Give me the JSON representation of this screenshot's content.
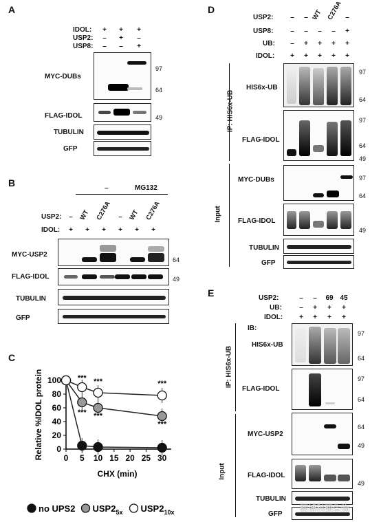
{
  "watermark": "硕博科研生物",
  "panelA": {
    "label": "A",
    "cond_labels": [
      "IDOL:",
      "USP2:",
      "USP8:"
    ],
    "cond_signs": [
      [
        "+",
        "+",
        "+"
      ],
      [
        "–",
        "+",
        "–"
      ],
      [
        "–",
        "–",
        "+"
      ]
    ],
    "rows": [
      "MYC-DUBs",
      "FLAG-IDOL",
      "TUBULIN",
      "GFP"
    ],
    "mw": [
      "97",
      "64",
      "49"
    ]
  },
  "panelB": {
    "label": "B",
    "group_blank": "–",
    "group_mg": "MG132",
    "usp2_label": "USP2:",
    "usp2_vals": [
      "–",
      "WT",
      "C276A",
      "–",
      "WT",
      "C276A"
    ],
    "idol_label": "IDOL:",
    "idol_vals": [
      "+",
      "+",
      "+",
      "+",
      "+",
      "+"
    ],
    "rows": [
      "MYC-USP2",
      "FLAG-IDOL",
      "TUBULIN",
      "GFP"
    ],
    "mw": [
      "64",
      "49"
    ]
  },
  "panelC": {
    "label": "C",
    "chart_data": {
      "type": "line",
      "xlabel": "CHX (min)",
      "ylabel": "Relative %IDOL protein",
      "x_ticks": [
        "0",
        "5",
        "10",
        "15",
        "20",
        "25",
        "30"
      ],
      "y_ticks": [
        "0",
        "20",
        "40",
        "60",
        "80",
        "100"
      ],
      "xlim": [
        0,
        32
      ],
      "ylim": [
        0,
        100
      ],
      "series": [
        {
          "name": "no UPS2",
          "marker": "black",
          "x": [
            0,
            5,
            10,
            30
          ],
          "y": [
            100,
            5,
            3,
            2
          ]
        },
        {
          "name": "USP2",
          "sub": "5x",
          "marker": "gray",
          "x": [
            0,
            5,
            10,
            30
          ],
          "y": [
            100,
            68,
            60,
            48
          ]
        },
        {
          "name": "USP2",
          "sub": "10x",
          "marker": "white",
          "x": [
            0,
            5,
            10,
            30
          ],
          "y": [
            100,
            90,
            82,
            78
          ]
        }
      ],
      "annotations": [
        {
          "text": "***",
          "x": 5,
          "y": 100
        },
        {
          "text": "***",
          "x": 10,
          "y": 95
        },
        {
          "text": "***",
          "x": 30,
          "y": 92
        },
        {
          "text": "***",
          "x": 5,
          "y": 50
        },
        {
          "text": "***",
          "x": 10,
          "y": 45
        },
        {
          "text": "***",
          "x": 30,
          "y": 33
        }
      ]
    }
  },
  "panelD": {
    "label": "D",
    "usp2_label": "USP2:",
    "usp2_vals": [
      "–",
      "–",
      "WT",
      "C276A",
      "–"
    ],
    "usp8_label": "USP8:",
    "usp8_vals": [
      "–",
      "–",
      "–",
      "–",
      "+"
    ],
    "ub_label": "UB:",
    "ub_vals": [
      "–",
      "+",
      "+",
      "+",
      "+"
    ],
    "idol_label": "IDOL:",
    "idol_vals": [
      "+",
      "+",
      "+",
      "+",
      "+"
    ],
    "side_ip": "IP: HIS6x-UB",
    "side_input": "Input",
    "rows": [
      "HIS6x-UB",
      "FLAG-IDOL",
      "MYC-DUBs",
      "FLAG-IDOL",
      "TUBULIN",
      "GFP"
    ],
    "mw": [
      "97",
      "64",
      "97",
      "64",
      "49",
      "97",
      "64",
      "49"
    ]
  },
  "panelE": {
    "label": "E",
    "usp2_label": "USP2:",
    "usp2_vals": [
      "–",
      "–",
      "69",
      "45"
    ],
    "ub_label": "UB:",
    "ub_vals": [
      "–",
      "+",
      "+",
      "+"
    ],
    "idol_label": "IDOL:",
    "idol_vals": [
      "+",
      "+",
      "+",
      "+"
    ],
    "ib_label": "IB:",
    "side_ip": "IP: HIS6x-UB",
    "side_input": "Input",
    "rows": [
      "HIS6x-UB",
      "FLAG-IDOL",
      "MYC-USP2",
      "FLAG-IDOL",
      "TUBULIN",
      "GFP"
    ],
    "mw": [
      "97",
      "64",
      "97",
      "64",
      "64",
      "49",
      "49"
    ]
  }
}
